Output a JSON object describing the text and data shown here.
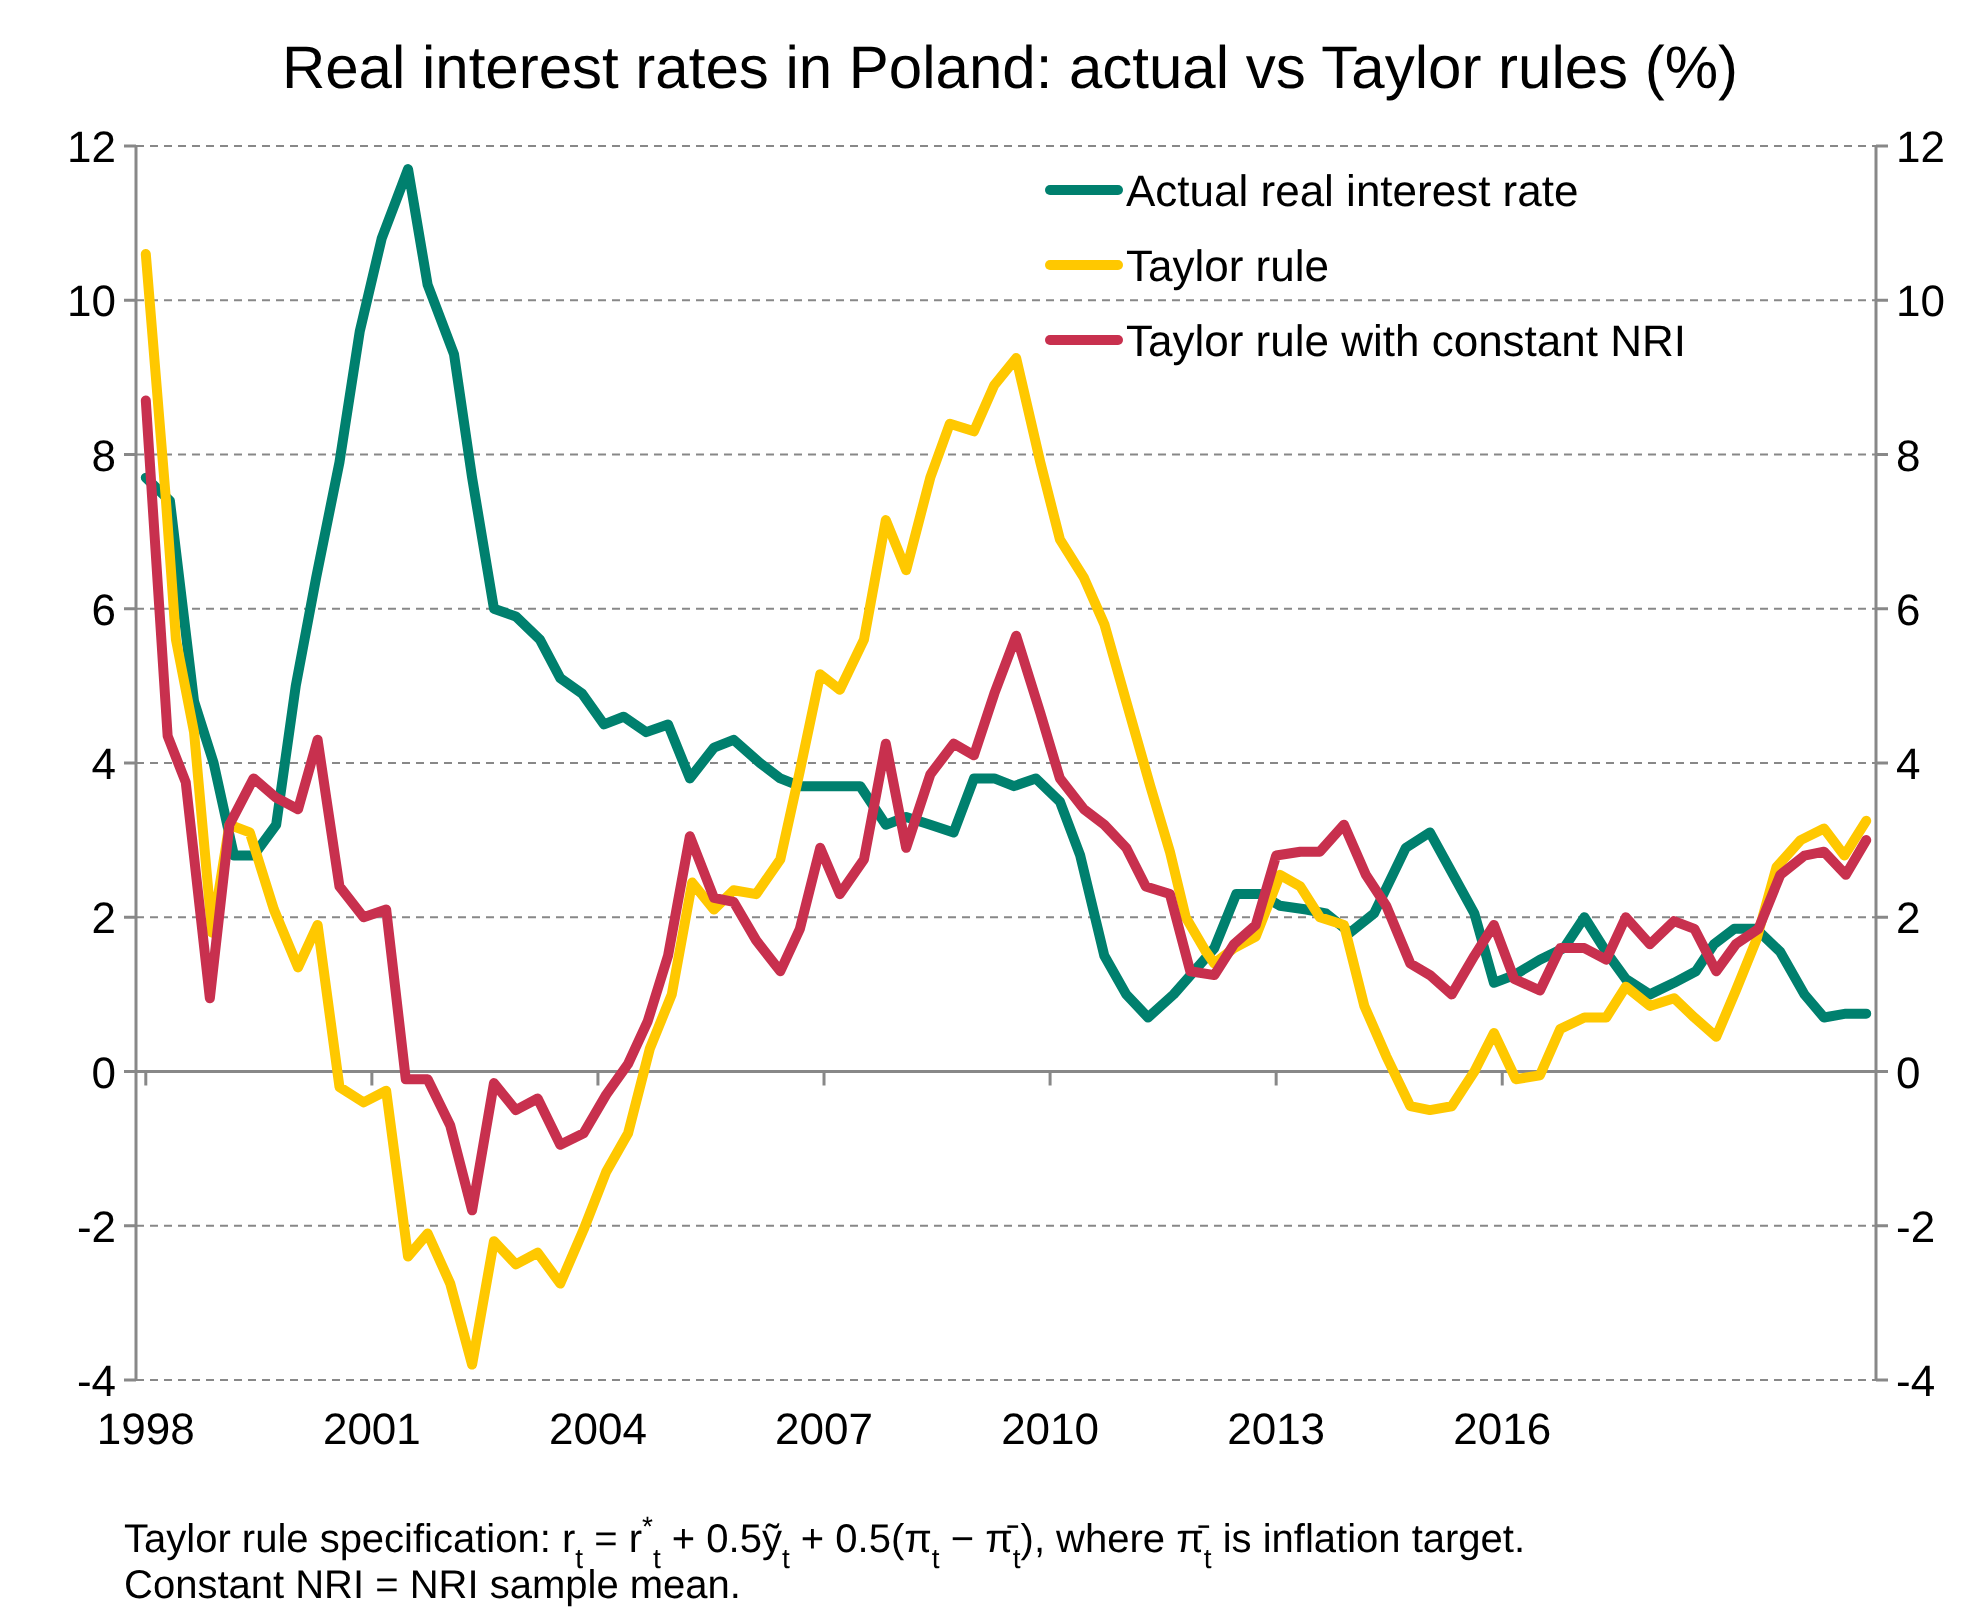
{
  "chart_data": {
    "type": "line",
    "title": "Real interest rates in Poland: actual vs Taylor rules (%)",
    "xlim": [
      1997.87,
      2020.96
    ],
    "xticks": [
      1998,
      2001,
      2004,
      2007,
      2010,
      2013,
      2016
    ],
    "ylim": [
      -4,
      12
    ],
    "yticks": [
      -4,
      -2,
      0,
      2,
      4,
      6,
      8,
      10,
      12
    ],
    "y2lim": [
      -4,
      12
    ],
    "y2ticks": [
      -4,
      -2,
      0,
      2,
      4,
      6,
      8,
      10,
      12
    ],
    "grid": "y",
    "legend": "top right",
    "line_style": "solid",
    "marker": "none",
    "annotations": [
      "Taylor rule specification: r$_{t}$ = r$^{*}$$_{t}$ + 0.5ỹ$_{t}$ + 0.5(π$_{t}$ − π̄$_{t}$), where π̄$_{t}$ is inflation target.",
      "Constant NRI = NRI sample mean."
    ],
    "series": [
      {
        "name": "Actual real interest rate",
        "color": "#00806e",
        "x": [
          1998.0,
          1998.32,
          1998.64,
          1998.9,
          1999.17,
          1999.43,
          1999.73,
          1999.99,
          2000.26,
          2000.57,
          2000.84,
          2001.13,
          2001.48,
          2001.74,
          2002.09,
          2002.33,
          2002.62,
          2002.91,
          2003.23,
          2003.5,
          2003.79,
          2004.08,
          2004.34,
          2004.64,
          2004.93,
          2005.22,
          2005.54,
          2005.8,
          2006.15,
          2006.42,
          2006.68,
          2006.95,
          2007.21,
          2007.48,
          2007.82,
          2008.09,
          2008.41,
          2008.72,
          2008.99,
          2009.26,
          2009.52,
          2009.81,
          2010.13,
          2010.4,
          2010.72,
          2011.01,
          2011.3,
          2011.64,
          2011.91,
          2012.18,
          2012.47,
          2012.79,
          2013.05,
          2013.4,
          2013.66,
          2013.98,
          2014.3,
          2014.72,
          2015.04,
          2015.63,
          2015.89,
          2016.16,
          2016.5,
          2016.82,
          2017.09,
          2017.38,
          2017.64,
          2017.96,
          2018.28,
          2018.57,
          2018.81,
          2019.08,
          2019.37,
          2019.69,
          2020.01,
          2020.27,
          2020.56,
          2020.83
        ],
        "values": [
          7.7,
          7.4,
          4.8,
          4.0,
          2.8,
          2.8,
          3.2,
          5.0,
          6.4,
          7.9,
          9.6,
          10.8,
          11.7,
          10.2,
          9.3,
          7.7,
          6.0,
          5.9,
          5.6,
          5.1,
          4.9,
          4.5,
          4.6,
          4.4,
          4.5,
          3.8,
          4.2,
          4.3,
          4.0,
          3.8,
          3.7,
          3.7,
          3.7,
          3.7,
          3.2,
          3.3,
          3.2,
          3.1,
          3.8,
          3.8,
          3.7,
          3.8,
          3.5,
          2.8,
          1.5,
          1.0,
          0.7,
          1.0,
          1.3,
          1.6,
          2.3,
          2.3,
          2.15,
          2.1,
          2.05,
          1.8,
          2.05,
          2.9,
          3.1,
          2.05,
          1.15,
          1.25,
          1.45,
          1.6,
          2.0,
          1.55,
          1.2,
          1.0,
          1.15,
          1.3,
          1.65,
          1.85,
          1.85,
          1.55,
          1.0,
          0.7,
          0.75,
          0.75
        ]
      },
      {
        "name": "Taylor rule",
        "color": "#ffc800",
        "x": [
          1998.0,
          1998.26,
          1998.4,
          1998.64,
          1998.88,
          1999.11,
          1999.38,
          1999.7,
          2000.02,
          2000.28,
          2000.57,
          2000.89,
          2001.19,
          2001.48,
          2001.74,
          2002.04,
          2002.33,
          2002.62,
          2002.91,
          2003.2,
          2003.5,
          2003.81,
          2004.11,
          2004.4,
          2004.69,
          2004.98,
          2005.25,
          2005.54,
          2005.8,
          2006.1,
          2006.42,
          2006.68,
          2006.95,
          2007.21,
          2007.53,
          2007.82,
          2008.09,
          2008.41,
          2008.67,
          2008.99,
          2009.26,
          2009.55,
          2009.87,
          2010.13,
          2010.45,
          2010.72,
          2011.01,
          2011.33,
          2011.59,
          2011.8,
          2012.07,
          2012.18,
          2012.44,
          2012.73,
          2013.05,
          2013.32,
          2013.58,
          2013.9,
          2014.17,
          2014.46,
          2014.78,
          2015.04,
          2015.33,
          2015.63,
          2015.89,
          2016.18,
          2016.5,
          2016.77,
          2017.09,
          2017.38,
          2017.64,
          2017.96,
          2018.28,
          2018.55,
          2018.84,
          2019.1,
          2019.37,
          2019.64,
          2019.96,
          2020.27,
          2020.54,
          2020.83
        ],
        "values": [
          10.6,
          7.5,
          5.6,
          4.4,
          1.8,
          3.2,
          3.1,
          2.1,
          1.35,
          1.9,
          -0.2,
          -0.4,
          -0.25,
          -2.4,
          -2.1,
          -2.75,
          -3.8,
          -2.2,
          -2.5,
          -2.35,
          -2.75,
          -2.05,
          -1.3,
          -0.8,
          0.3,
          1.0,
          2.45,
          2.1,
          2.35,
          2.3,
          2.75,
          3.9,
          5.15,
          4.95,
          5.6,
          7.15,
          6.5,
          7.7,
          8.4,
          8.3,
          8.9,
          9.25,
          7.9,
          6.9,
          6.4,
          5.8,
          4.8,
          3.7,
          2.85,
          2.0,
          1.55,
          1.4,
          1.6,
          1.75,
          2.55,
          2.4,
          2.0,
          1.9,
          0.85,
          0.2,
          -0.45,
          -0.5,
          -0.45,
          0.0,
          0.5,
          -0.1,
          -0.05,
          0.55,
          0.7,
          0.7,
          1.1,
          0.85,
          0.95,
          0.7,
          0.45,
          1.05,
          1.7,
          2.65,
          3.0,
          3.15,
          2.8,
          3.25
        ]
      },
      {
        "name": "Taylor rule with constant NRI",
        "color": "#c8304e",
        "x": [
          1998.0,
          1998.29,
          1998.53,
          1998.85,
          1999.11,
          1999.43,
          1999.73,
          2000.02,
          2000.28,
          2000.57,
          2000.89,
          2001.19,
          2001.45,
          2001.74,
          2002.04,
          2002.33,
          2002.62,
          2002.91,
          2003.2,
          2003.5,
          2003.81,
          2004.11,
          2004.4,
          2004.66,
          2004.93,
          2005.22,
          2005.54,
          2005.8,
          2006.1,
          2006.42,
          2006.68,
          2006.95,
          2007.21,
          2007.53,
          2007.82,
          2008.09,
          2008.41,
          2008.72,
          2008.99,
          2009.26,
          2009.55,
          2009.87,
          2010.13,
          2010.45,
          2010.72,
          2011.01,
          2011.27,
          2011.59,
          2011.86,
          2012.18,
          2012.44,
          2012.73,
          2013.0,
          2013.32,
          2013.58,
          2013.9,
          2014.19,
          2014.46,
          2014.78,
          2015.04,
          2015.33,
          2015.63,
          2015.89,
          2016.16,
          2016.5,
          2016.77,
          2017.09,
          2017.38,
          2017.64,
          2017.96,
          2018.28,
          2018.55,
          2018.84,
          2019.1,
          2019.4,
          2019.69,
          2020.01,
          2020.27,
          2020.56,
          2020.83
        ],
        "values": [
          8.7,
          4.35,
          3.75,
          0.95,
          3.2,
          3.8,
          3.55,
          3.4,
          4.3,
          2.4,
          2.0,
          2.1,
          -0.1,
          -0.1,
          -0.7,
          -1.8,
          -0.15,
          -0.5,
          -0.35,
          -0.95,
          -0.8,
          -0.3,
          0.1,
          0.65,
          1.5,
          3.05,
          2.25,
          2.2,
          1.7,
          1.3,
          1.85,
          2.9,
          2.3,
          2.75,
          4.25,
          2.9,
          3.85,
          4.25,
          4.1,
          4.9,
          5.65,
          4.65,
          3.8,
          3.4,
          3.2,
          2.9,
          2.4,
          2.3,
          1.3,
          1.25,
          1.65,
          1.9,
          2.8,
          2.85,
          2.85,
          3.2,
          2.55,
          2.15,
          1.4,
          1.25,
          1.0,
          1.5,
          1.9,
          1.2,
          1.05,
          1.6,
          1.6,
          1.45,
          2.0,
          1.65,
          1.95,
          1.85,
          1.3,
          1.65,
          1.85,
          2.55,
          2.8,
          2.85,
          2.55,
          3.0
        ]
      }
    ]
  }
}
